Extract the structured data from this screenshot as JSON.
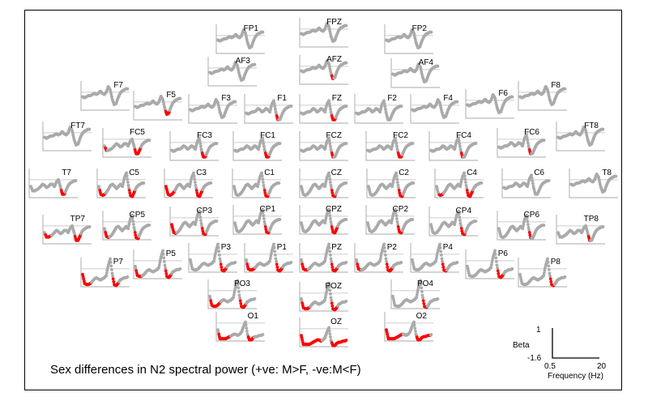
{
  "chart_data": {
    "type": "line",
    "title": "Sex differences in N2 spectral power (+ve: M>F, -ve:M<F)",
    "ylabel": "Beta",
    "xlabel": "Frequency (Hz)",
    "xlim": [
      0.5,
      20
    ],
    "ylim": [
      -1.6,
      1
    ],
    "x_tick_labels": [
      "0.5",
      "20"
    ],
    "y_tick_labels": [
      "1",
      "-1.6"
    ],
    "colors": {
      "nonsignificant": "#aaaaaa",
      "significant": "#ff0000",
      "axis": "#bbbbbb",
      "zero_line": "#cccccc"
    },
    "profiles": {
      "frontal": [
        -0.4,
        -0.5,
        -0.4,
        -0.3,
        -0.3,
        -0.2,
        -0.1,
        -0.2,
        -0.1,
        0.1,
        -0.1,
        -0.2,
        0.0,
        0.5,
        0.2,
        -0.6,
        -1.1,
        -1.0,
        -0.5,
        -0.1,
        0.1,
        0.2,
        0.3,
        0.3
      ],
      "frontocentral": [
        -0.7,
        -0.8,
        -0.7,
        -0.6,
        -0.6,
        -0.5,
        -0.3,
        -0.4,
        -0.6,
        -0.5,
        -0.3,
        -0.4,
        -0.6,
        0.1,
        0.4,
        -0.6,
        -1.3,
        -1.3,
        -0.9,
        -0.5,
        -0.3,
        -0.2,
        -0.1,
        -0.1
      ],
      "temporal": [
        -0.6,
        -1.0,
        -1.0,
        -0.9,
        -0.8,
        -0.6,
        -0.4,
        -0.5,
        -0.7,
        -0.6,
        -0.4,
        -0.4,
        -0.6,
        -0.2,
        0.0,
        -0.6,
        -1.3,
        -1.3,
        -0.9,
        -0.5,
        -0.3,
        -0.2,
        -0.1,
        -0.1
      ],
      "central": [
        -0.6,
        -1.3,
        -1.4,
        -1.3,
        -1.1,
        -0.8,
        -0.5,
        -0.4,
        -0.6,
        -0.8,
        -0.6,
        -0.4,
        -0.6,
        0.2,
        0.6,
        -0.5,
        -1.4,
        -1.5,
        -1.1,
        -0.7,
        -0.5,
        -0.4,
        -0.3,
        -0.3
      ],
      "posterior": [
        -0.5,
        -1.3,
        -1.4,
        -1.4,
        -1.3,
        -1.1,
        -0.9,
        -0.8,
        -0.9,
        -1.0,
        -0.9,
        -0.8,
        -0.6,
        0.3,
        0.9,
        -0.4,
        -1.4,
        -1.5,
        -1.3,
        -1.0,
        -0.9,
        -0.8,
        -0.8,
        -0.7
      ],
      "occipital": [
        -0.6,
        -1.4,
        -1.4,
        -1.4,
        -1.4,
        -1.3,
        -1.2,
        -1.1,
        -1.0,
        -1.0,
        -1.1,
        -1.0,
        -0.8,
        -0.3,
        0.1,
        -1.0,
        -1.5,
        -1.5,
        -1.3,
        -1.2,
        -1.2,
        -1.1,
        -1.1,
        -1.0
      ]
    },
    "channels": [
      {
        "name": "FP1",
        "profile": "frontal",
        "significant": []
      },
      {
        "name": "FPZ",
        "profile": "frontal",
        "significant": []
      },
      {
        "name": "FP2",
        "profile": "frontal",
        "significant": []
      },
      {
        "name": "AF3",
        "profile": "frontal",
        "significant": []
      },
      {
        "name": "AFZ",
        "profile": "frontal",
        "significant": [
          [
            16,
            16
          ]
        ]
      },
      {
        "name": "AF4",
        "profile": "frontal",
        "significant": []
      },
      {
        "name": "F7",
        "profile": "frontal",
        "significant": []
      },
      {
        "name": "F5",
        "profile": "frontal",
        "significant": [
          [
            16,
            17
          ]
        ]
      },
      {
        "name": "F3",
        "profile": "frontal",
        "significant": []
      },
      {
        "name": "F1",
        "profile": "frontocentral",
        "significant": [
          [
            16,
            16
          ]
        ]
      },
      {
        "name": "FZ",
        "profile": "frontocentral",
        "significant": [
          [
            16,
            17
          ]
        ]
      },
      {
        "name": "F2",
        "profile": "frontocentral",
        "significant": []
      },
      {
        "name": "F4",
        "profile": "frontal",
        "significant": []
      },
      {
        "name": "F6",
        "profile": "frontal",
        "significant": []
      },
      {
        "name": "F8",
        "profile": "frontal",
        "significant": []
      },
      {
        "name": "FT7",
        "profile": "frontal",
        "significant": []
      },
      {
        "name": "FC5",
        "profile": "temporal",
        "significant": [
          [
            1,
            1
          ],
          [
            16,
            18
          ]
        ]
      },
      {
        "name": "FC3",
        "profile": "frontocentral",
        "significant": [
          [
            16,
            17
          ]
        ]
      },
      {
        "name": "FC1",
        "profile": "frontocentral",
        "significant": [
          [
            16,
            17
          ]
        ]
      },
      {
        "name": "FCZ",
        "profile": "frontocentral",
        "significant": [
          [
            16,
            16
          ]
        ]
      },
      {
        "name": "FC2",
        "profile": "frontocentral",
        "significant": [
          [
            16,
            17
          ]
        ]
      },
      {
        "name": "FC4",
        "profile": "frontocentral",
        "significant": [
          [
            16,
            16
          ]
        ]
      },
      {
        "name": "FC6",
        "profile": "frontocentral",
        "significant": [
          [
            16,
            16
          ]
        ]
      },
      {
        "name": "FT8",
        "profile": "frontal",
        "significant": []
      },
      {
        "name": "T7",
        "profile": "temporal",
        "significant": [
          [
            16,
            17
          ]
        ]
      },
      {
        "name": "C5",
        "profile": "central",
        "significant": [
          [
            1,
            3
          ],
          [
            16,
            18
          ]
        ]
      },
      {
        "name": "C3",
        "profile": "central",
        "significant": [
          [
            0,
            4
          ],
          [
            16,
            18
          ]
        ]
      },
      {
        "name": "C1",
        "profile": "central",
        "significant": [
          [
            16,
            17
          ]
        ]
      },
      {
        "name": "CZ",
        "profile": "central",
        "significant": [
          [
            16,
            17
          ]
        ]
      },
      {
        "name": "C2",
        "profile": "central",
        "significant": [
          [
            16,
            17
          ]
        ]
      },
      {
        "name": "C4",
        "profile": "central",
        "significant": [
          [
            2,
            3
          ],
          [
            16,
            18
          ]
        ]
      },
      {
        "name": "C6",
        "profile": "frontocentral",
        "significant": []
      },
      {
        "name": "T8",
        "profile": "frontal",
        "significant": []
      },
      {
        "name": "TP7",
        "profile": "temporal",
        "significant": [
          [
            1,
            3
          ],
          [
            16,
            18
          ]
        ]
      },
      {
        "name": "CP5",
        "profile": "central",
        "significant": [
          [
            1,
            2
          ],
          [
            16,
            17
          ]
        ]
      },
      {
        "name": "CP3",
        "profile": "central",
        "significant": [
          [
            0,
            2
          ],
          [
            16,
            17
          ]
        ]
      },
      {
        "name": "CP1",
        "profile": "central",
        "significant": [
          [
            16,
            17
          ]
        ]
      },
      {
        "name": "CPZ",
        "profile": "central",
        "significant": [
          [
            16,
            18
          ]
        ]
      },
      {
        "name": "CP2",
        "profile": "central",
        "significant": [
          [
            16,
            17
          ]
        ]
      },
      {
        "name": "CP4",
        "profile": "central",
        "significant": [
          [
            16,
            17
          ]
        ]
      },
      {
        "name": "CP6",
        "profile": "central",
        "significant": [
          [
            16,
            16
          ]
        ]
      },
      {
        "name": "TP8",
        "profile": "temporal",
        "significant": [
          [
            16,
            16
          ]
        ]
      },
      {
        "name": "P7",
        "profile": "posterior",
        "significant": [
          [
            0,
            4
          ],
          [
            16,
            18
          ]
        ]
      },
      {
        "name": "P5",
        "profile": "posterior",
        "significant": [
          [
            1,
            3
          ],
          [
            16,
            18
          ]
        ]
      },
      {
        "name": "P3",
        "profile": "posterior",
        "significant": [
          [
            16,
            18
          ]
        ]
      },
      {
        "name": "P1",
        "profile": "posterior",
        "significant": [
          [
            1,
            4
          ],
          [
            16,
            18
          ]
        ]
      },
      {
        "name": "PZ",
        "profile": "posterior",
        "significant": [
          [
            1,
            3
          ],
          [
            16,
            18
          ]
        ]
      },
      {
        "name": "P2",
        "profile": "posterior",
        "significant": [
          [
            1,
            2
          ],
          [
            16,
            18
          ]
        ]
      },
      {
        "name": "P4",
        "profile": "posterior",
        "significant": [
          [
            16,
            17
          ]
        ]
      },
      {
        "name": "P6",
        "profile": "posterior",
        "significant": [
          [
            16,
            18
          ]
        ]
      },
      {
        "name": "P8",
        "profile": "posterior",
        "significant": [
          [
            16,
            17
          ]
        ]
      },
      {
        "name": "PO3",
        "profile": "posterior",
        "significant": [
          [
            1,
            5
          ],
          [
            16,
            18
          ]
        ]
      },
      {
        "name": "POZ",
        "profile": "posterior",
        "significant": [
          [
            1,
            4
          ],
          [
            16,
            18
          ]
        ]
      },
      {
        "name": "PO4",
        "profile": "posterior",
        "significant": [
          [
            16,
            17
          ]
        ]
      },
      {
        "name": "O1",
        "profile": "occipital",
        "significant": [
          [
            1,
            6
          ],
          [
            16,
            18
          ]
        ]
      },
      {
        "name": "OZ",
        "profile": "occipital",
        "significant": [
          [
            0,
            10
          ],
          [
            16,
            23
          ]
        ]
      },
      {
        "name": "O2",
        "profile": "occipital",
        "significant": [
          [
            0,
            8
          ],
          [
            16,
            22
          ]
        ]
      }
    ]
  }
}
